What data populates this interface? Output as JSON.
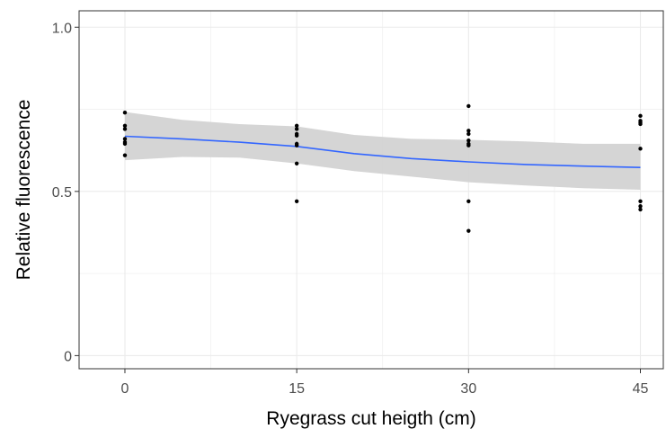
{
  "chart_data": {
    "type": "scatter",
    "title": "",
    "xlabel": "Ryegrass cut heigth (cm)",
    "ylabel": "Relative fluorescence",
    "xlim": [
      -4,
      47
    ],
    "ylim": [
      -0.04,
      1.05
    ],
    "x_ticks": [
      0,
      15,
      30,
      45
    ],
    "x_tick_labels": [
      "0",
      "15",
      "30",
      "45"
    ],
    "y_ticks": [
      0,
      0.5,
      1.0
    ],
    "y_tick_labels": [
      "0",
      "0.5",
      "1.0"
    ],
    "grid": true,
    "legend": "none",
    "points": [
      {
        "x": 0,
        "y": 0.74
      },
      {
        "x": 0,
        "y": 0.7
      },
      {
        "x": 0,
        "y": 0.69
      },
      {
        "x": 0,
        "y": 0.66
      },
      {
        "x": 0,
        "y": 0.65
      },
      {
        "x": 0,
        "y": 0.645
      },
      {
        "x": 0,
        "y": 0.61
      },
      {
        "x": 15,
        "y": 0.7
      },
      {
        "x": 15,
        "y": 0.69
      },
      {
        "x": 15,
        "y": 0.675
      },
      {
        "x": 15,
        "y": 0.67
      },
      {
        "x": 15,
        "y": 0.645
      },
      {
        "x": 15,
        "y": 0.64
      },
      {
        "x": 15,
        "y": 0.585
      },
      {
        "x": 15,
        "y": 0.47
      },
      {
        "x": 30,
        "y": 0.76
      },
      {
        "x": 30,
        "y": 0.685
      },
      {
        "x": 30,
        "y": 0.675
      },
      {
        "x": 30,
        "y": 0.655
      },
      {
        "x": 30,
        "y": 0.645
      },
      {
        "x": 30,
        "y": 0.64
      },
      {
        "x": 30,
        "y": 0.47
      },
      {
        "x": 30,
        "y": 0.38
      },
      {
        "x": 45,
        "y": 0.73
      },
      {
        "x": 45,
        "y": 0.715
      },
      {
        "x": 45,
        "y": 0.71
      },
      {
        "x": 45,
        "y": 0.705
      },
      {
        "x": 45,
        "y": 0.63
      },
      {
        "x": 45,
        "y": 0.47
      },
      {
        "x": 45,
        "y": 0.455
      },
      {
        "x": 45,
        "y": 0.445
      }
    ],
    "smooth": {
      "x": [
        0,
        5,
        10,
        15,
        20,
        25,
        30,
        35,
        40,
        45
      ],
      "y": [
        0.668,
        0.66,
        0.65,
        0.637,
        0.615,
        0.6,
        0.59,
        0.582,
        0.577,
        0.573
      ],
      "lower": [
        0.595,
        0.605,
        0.603,
        0.585,
        0.562,
        0.545,
        0.528,
        0.518,
        0.51,
        0.505
      ],
      "upper": [
        0.742,
        0.718,
        0.705,
        0.698,
        0.672,
        0.66,
        0.657,
        0.652,
        0.645,
        0.645
      ]
    },
    "colors": {
      "points": "#000000",
      "line": "#3366FF",
      "ribbon": "#d3d3d3",
      "grid": "#ebebeb",
      "panel_border": "#333333"
    }
  }
}
